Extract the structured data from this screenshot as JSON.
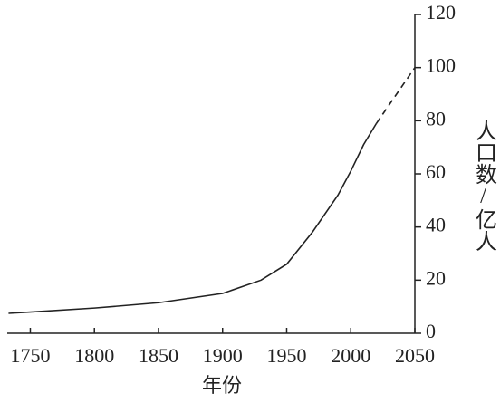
{
  "chart_data": {
    "type": "line",
    "x_label": "年份",
    "y_label": "人口数/亿人",
    "x": [
      1733,
      1750,
      1800,
      1850,
      1900,
      1930,
      1950,
      1970,
      1990,
      2000,
      2010,
      2020,
      2050
    ],
    "series": [
      {
        "color": "#222222",
        "dashed": false,
        "values": [
          7.5,
          8,
          9.5,
          11.5,
          15,
          20,
          26,
          38,
          52,
          61,
          71,
          79,
          null
        ]
      },
      {
        "color": "#222222",
        "dashed": true,
        "values": [
          null,
          null,
          null,
          null,
          null,
          null,
          null,
          null,
          null,
          null,
          null,
          79,
          100
        ]
      }
    ],
    "xlim": [
      1732,
      2050
    ],
    "ylim": [
      0,
      120
    ],
    "xticks": [
      1750,
      1800,
      1850,
      1900,
      1950,
      2000,
      2050
    ],
    "yticks": [
      0,
      20,
      40,
      60,
      80,
      100,
      120
    ],
    "y_axis_side": "right",
    "grid": false
  }
}
